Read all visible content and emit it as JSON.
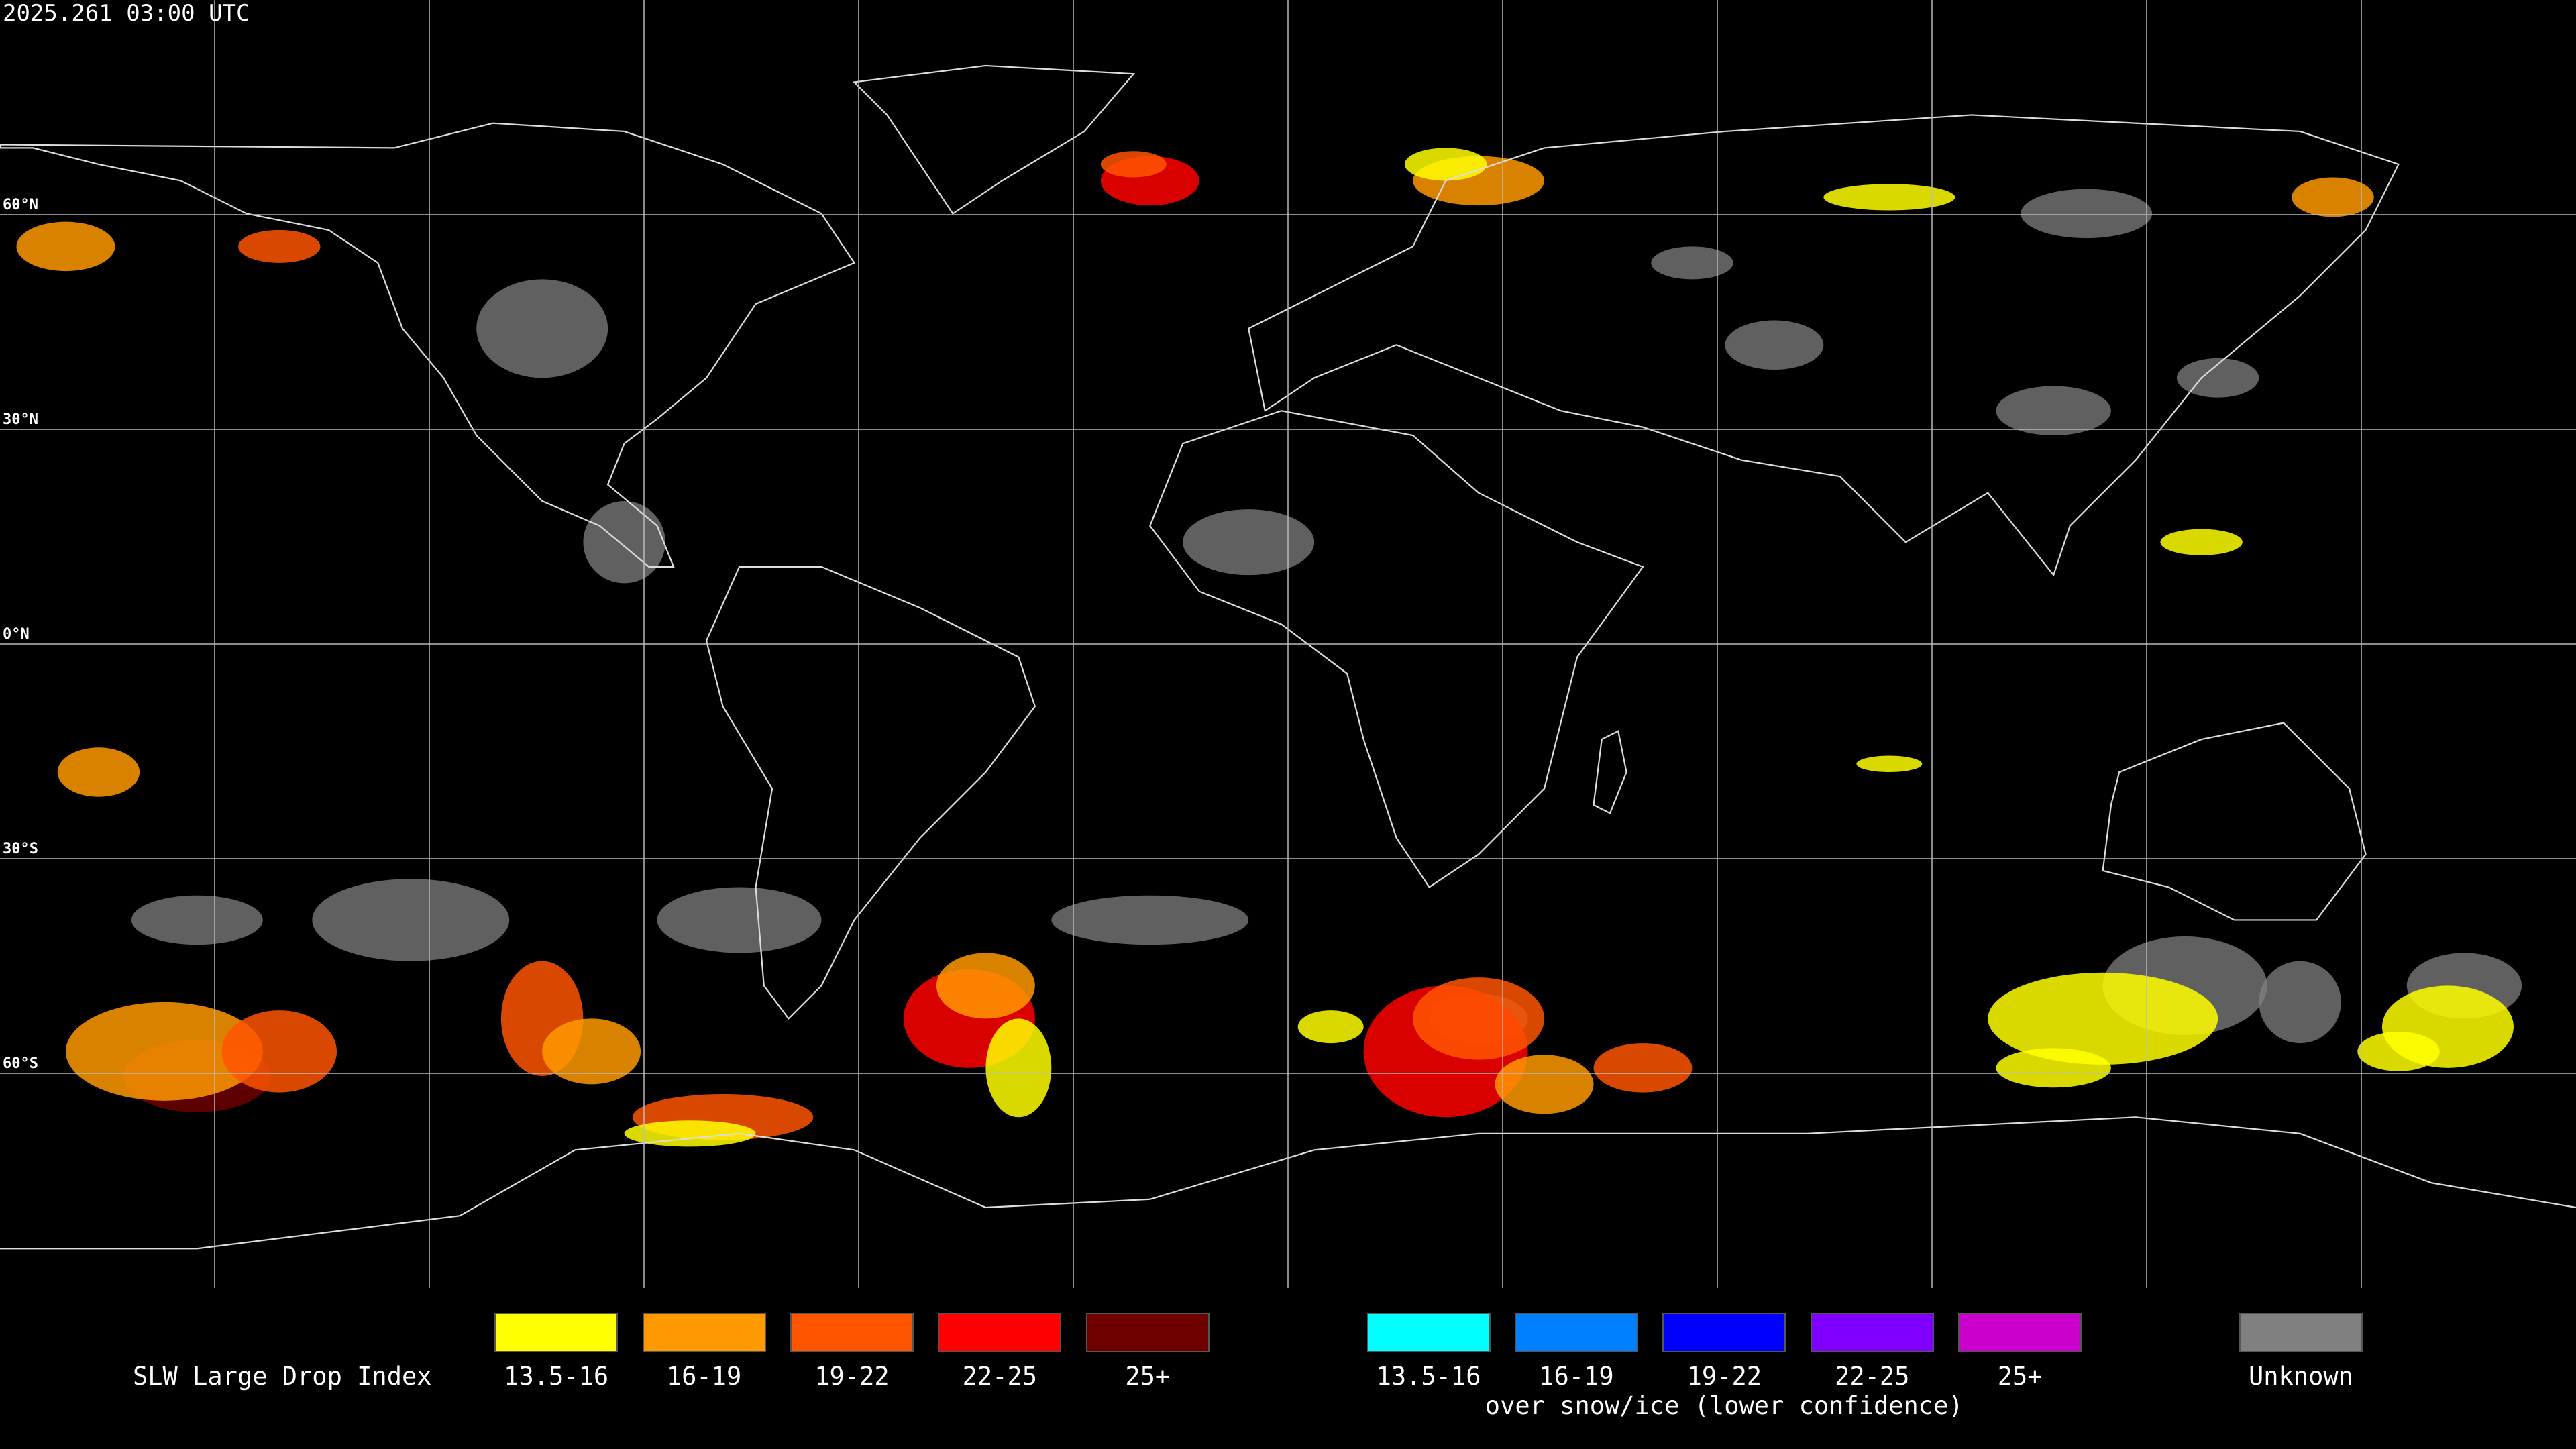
{
  "header": {
    "timestamp": "2025.261 03:00 UTC"
  },
  "map": {
    "lat_labels": [
      "60°N",
      "30°N",
      "0°N",
      "30°S",
      "60°S"
    ]
  },
  "legend": {
    "title": "SLW Large Drop Index",
    "groups": [
      {
        "items": [
          {
            "label": "13.5-16",
            "color": "#ffff00"
          },
          {
            "label": "16-19",
            "color": "#ff9900"
          },
          {
            "label": "19-22",
            "color": "#ff5500"
          },
          {
            "label": "22-25",
            "color": "#ff0000"
          },
          {
            "label": "25+",
            "color": "#6e0000"
          }
        ]
      },
      {
        "items": [
          {
            "label": "13.5-16",
            "color": "#00ffff"
          },
          {
            "label": "16-19",
            "color": "#0080ff"
          },
          {
            "label": "19-22",
            "color": "#0000ff"
          },
          {
            "label": "22-25",
            "color": "#8000ff"
          },
          {
            "label": "25+",
            "color": "#cc00cc"
          }
        ],
        "caption": "over snow/ice (lower confidence)"
      }
    ],
    "unknown": {
      "label": "Unknown",
      "color": "#808080"
    }
  }
}
